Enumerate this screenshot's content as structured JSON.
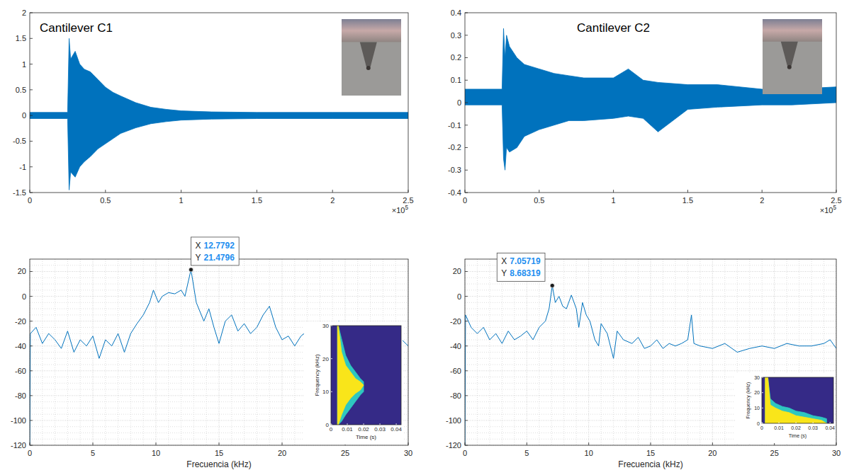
{
  "chart_data": [
    {
      "type": "band",
      "title": "Cantilever C1",
      "color": "#0072bd",
      "x": [
        0,
        0.25,
        0.26,
        0.27,
        0.3,
        0.33,
        0.36,
        0.4,
        0.45,
        0.5,
        0.55,
        0.6,
        0.7,
        0.8,
        0.9,
        1,
        1.2,
        1.5,
        2,
        2.5
      ],
      "upper": [
        0.06,
        0.06,
        1.5,
        1.1,
        1.25,
        1.0,
        0.9,
        0.85,
        0.7,
        0.55,
        0.45,
        0.38,
        0.25,
        0.16,
        0.12,
        0.09,
        0.07,
        0.06,
        0.06,
        0.06
      ],
      "lower": [
        -0.06,
        -0.06,
        -1.45,
        -1.1,
        -1.2,
        -1.0,
        -0.9,
        -0.8,
        -0.65,
        -0.55,
        -0.45,
        -0.35,
        -0.24,
        -0.16,
        -0.12,
        -0.09,
        -0.07,
        -0.06,
        -0.06,
        -0.06
      ],
      "xlim": [
        0,
        2.5
      ],
      "xticks": [
        0,
        0.5,
        1,
        1.5,
        2,
        2.5
      ],
      "ylim": [
        -1.5,
        2
      ],
      "yticks": [
        -1.5,
        -1,
        -0.5,
        0,
        0.5,
        1,
        1.5,
        2
      ],
      "x_scale_base": "×10",
      "x_scale_exponent": "5",
      "grid": false
    },
    {
      "type": "band",
      "title": "Cantilever C2",
      "color": "#0072bd",
      "x": [
        0,
        0.25,
        0.26,
        0.27,
        0.28,
        0.3,
        0.35,
        0.4,
        0.5,
        0.6,
        0.7,
        0.8,
        1,
        1.1,
        1.2,
        1.3,
        1.5,
        1.7,
        2,
        2.2,
        2.5
      ],
      "upper": [
        0.06,
        0.06,
        0.33,
        0.2,
        0.3,
        0.25,
        0.2,
        0.17,
        0.15,
        0.13,
        0.12,
        0.11,
        0.11,
        0.15,
        0.1,
        0.09,
        0.08,
        0.08,
        0.06,
        0.06,
        0.07
      ],
      "lower": [
        -0.01,
        -0.01,
        -0.25,
        -0.3,
        -0.2,
        -0.22,
        -0.2,
        -0.15,
        -0.12,
        -0.1,
        -0.08,
        -0.08,
        -0.07,
        -0.06,
        -0.07,
        -0.13,
        -0.03,
        -0.02,
        -0.01,
        -0.01,
        0
      ],
      "xlim": [
        0,
        2.5
      ],
      "xticks": [
        0,
        0.5,
        1,
        1.5,
        2,
        2.5
      ],
      "ylim": [
        -0.4,
        0.4
      ],
      "yticks": [
        -0.4,
        -0.3,
        -0.2,
        -0.1,
        0,
        0.1,
        0.2,
        0.3,
        0.4
      ],
      "x_scale_base": "×10",
      "x_scale_exponent": "5",
      "grid": false
    },
    {
      "type": "line",
      "color": "#0072bd",
      "xlabel": "Frecuencia (kHz)",
      "x": [
        0,
        0.05,
        0.5,
        1,
        1.5,
        2,
        2.5,
        3,
        3.5,
        4,
        4.5,
        5,
        5.5,
        6,
        6.5,
        7,
        7.5,
        8,
        8.5,
        9,
        9.5,
        9.8,
        10.2,
        10.5,
        11,
        11.5,
        12,
        12.3,
        12.7792,
        13.2,
        13.8,
        14.2,
        14.6,
        15,
        15.5,
        16,
        16.5,
        17,
        17.5,
        18,
        18.5,
        19,
        19.5,
        20,
        20.5,
        21,
        21.5,
        22,
        22.5,
        23,
        23.5,
        24,
        24.5,
        25,
        25.5,
        26,
        26.5,
        27,
        27.5,
        28,
        28.5,
        29,
        29.5,
        30
      ],
      "values": [
        -120,
        -30,
        -25,
        -38,
        -30,
        -35,
        -42,
        -28,
        -45,
        -35,
        -40,
        -32,
        -50,
        -35,
        -40,
        -30,
        -45,
        -30,
        -22,
        -15,
        -5,
        5,
        -5,
        0,
        3,
        2,
        5,
        0,
        21.4796,
        -5,
        -20,
        -10,
        -25,
        -38,
        -20,
        -15,
        -28,
        -22,
        -30,
        -25,
        -15,
        -8,
        -25,
        -35,
        -32,
        -40,
        -32,
        -28,
        -38,
        -40,
        -30,
        -32,
        -20,
        -32,
        -38,
        -28,
        -36,
        -30,
        -25,
        -35,
        -32,
        -38,
        -35,
        -40
      ],
      "xlim": [
        0,
        30
      ],
      "xticks": [
        0,
        5,
        10,
        15,
        20,
        25,
        30
      ],
      "ylim": [
        -120,
        30
      ],
      "yticks": [
        -120,
        -100,
        -80,
        -60,
        -40,
        -20,
        0,
        20
      ],
      "grid": true,
      "annotations": [
        {
          "x": 12.7792,
          "y": 21.4796,
          "x_text": "X",
          "y_text": "Y"
        }
      ]
    },
    {
      "type": "line",
      "color": "#0072bd",
      "xlabel": "Frecuencia (kHz)",
      "x": [
        0,
        0.05,
        0.5,
        1,
        1.5,
        2,
        2.5,
        3,
        3.5,
        4,
        4.5,
        5,
        5.5,
        6,
        6.5,
        6.8,
        7.05719,
        7.3,
        7.6,
        7.9,
        8.2,
        8.6,
        9,
        9.2,
        9.5,
        9.8,
        10.1,
        10.5,
        10.8,
        11,
        11.5,
        12,
        12.3,
        12.8,
        13.5,
        14,
        14.5,
        15,
        15.5,
        16,
        16.5,
        17,
        17.5,
        18,
        18.3,
        18.5,
        19,
        20,
        21,
        22,
        23,
        24,
        25,
        26,
        27,
        28,
        29,
        29.5,
        30
      ],
      "values": [
        -120,
        -15,
        -25,
        -30,
        -25,
        -35,
        -30,
        -38,
        -28,
        -35,
        -32,
        -28,
        -35,
        -25,
        -20,
        -10,
        8.68319,
        -5,
        0,
        -8,
        -10,
        1,
        -10,
        -25,
        -5,
        -15,
        -20,
        -35,
        -40,
        -22,
        -30,
        -50,
        -28,
        -35,
        -38,
        -33,
        -42,
        -40,
        -35,
        -42,
        -38,
        -40,
        -38,
        -35,
        -15,
        -38,
        -40,
        -42,
        -38,
        -45,
        -42,
        -40,
        -42,
        -38,
        -40,
        -40,
        -38,
        -35,
        -42
      ],
      "xlim": [
        0,
        30
      ],
      "xticks": [
        0,
        5,
        10,
        15,
        20,
        25,
        30
      ],
      "ylim": [
        -120,
        30
      ],
      "yticks": [
        -120,
        -100,
        -80,
        -60,
        -40,
        -20,
        0,
        20
      ],
      "grid": true,
      "annotations": [
        {
          "x": 7.05719,
          "y": 8.68319,
          "x_text": "X",
          "y_text": "Y"
        }
      ]
    },
    {
      "type": "band",
      "xlabel": "Time (s)",
      "ylabel": "Frequency (kHz)",
      "x": [
        0.004,
        0.0045,
        0.0065,
        0.009,
        0.012,
        0.015,
        0.018,
        0.02
      ],
      "series": [
        {
          "color": "#2ec7c0",
          "upper": [
            30,
            30,
            26,
            21,
            18,
            16,
            14,
            13
          ],
          "lower": [
            0,
            0,
            1,
            3,
            5,
            7,
            9,
            10
          ]
        },
        {
          "color": "#f9e51a",
          "upper": [
            30,
            30,
            22,
            18,
            16,
            14,
            13,
            12
          ],
          "lower": [
            0,
            0,
            3,
            6,
            8,
            9.5,
            10.5,
            12
          ]
        }
      ],
      "xlim": [
        0,
        0.043
      ],
      "xticks": [
        0,
        0.01,
        0.02,
        0.03,
        0.04
      ],
      "ylim": [
        0,
        30
      ],
      "yticks": [
        0,
        10,
        20,
        30
      ]
    },
    {
      "type": "band",
      "xlabel": "Time (s)",
      "ylabel": "Frequency (kHz)",
      "x": [
        0.002,
        0.0035,
        0.005,
        0.008,
        0.012,
        0.016,
        0.02,
        0.025,
        0.03,
        0.035,
        0.038
      ],
      "series": [
        {
          "color": "#2ec7c0",
          "upper": [
            30,
            30,
            16,
            13,
            11,
            10,
            8,
            7,
            5,
            4,
            3
          ],
          "lower": [
            0,
            0,
            0,
            0,
            0,
            0,
            0,
            0,
            0,
            0,
            0
          ]
        },
        {
          "color": "#f9e51a",
          "upper": [
            30,
            30,
            12,
            10,
            8,
            7,
            5,
            4,
            3,
            2,
            0
          ],
          "lower": [
            0,
            0,
            0,
            0,
            0,
            0,
            0,
            0,
            0,
            0,
            0
          ]
        }
      ],
      "xlim": [
        0,
        0.042
      ],
      "xticks": [
        0,
        0.01,
        0.02,
        0.03,
        0.04
      ],
      "ylim": [
        0,
        30
      ],
      "yticks": [
        0,
        10,
        20,
        30
      ]
    }
  ]
}
